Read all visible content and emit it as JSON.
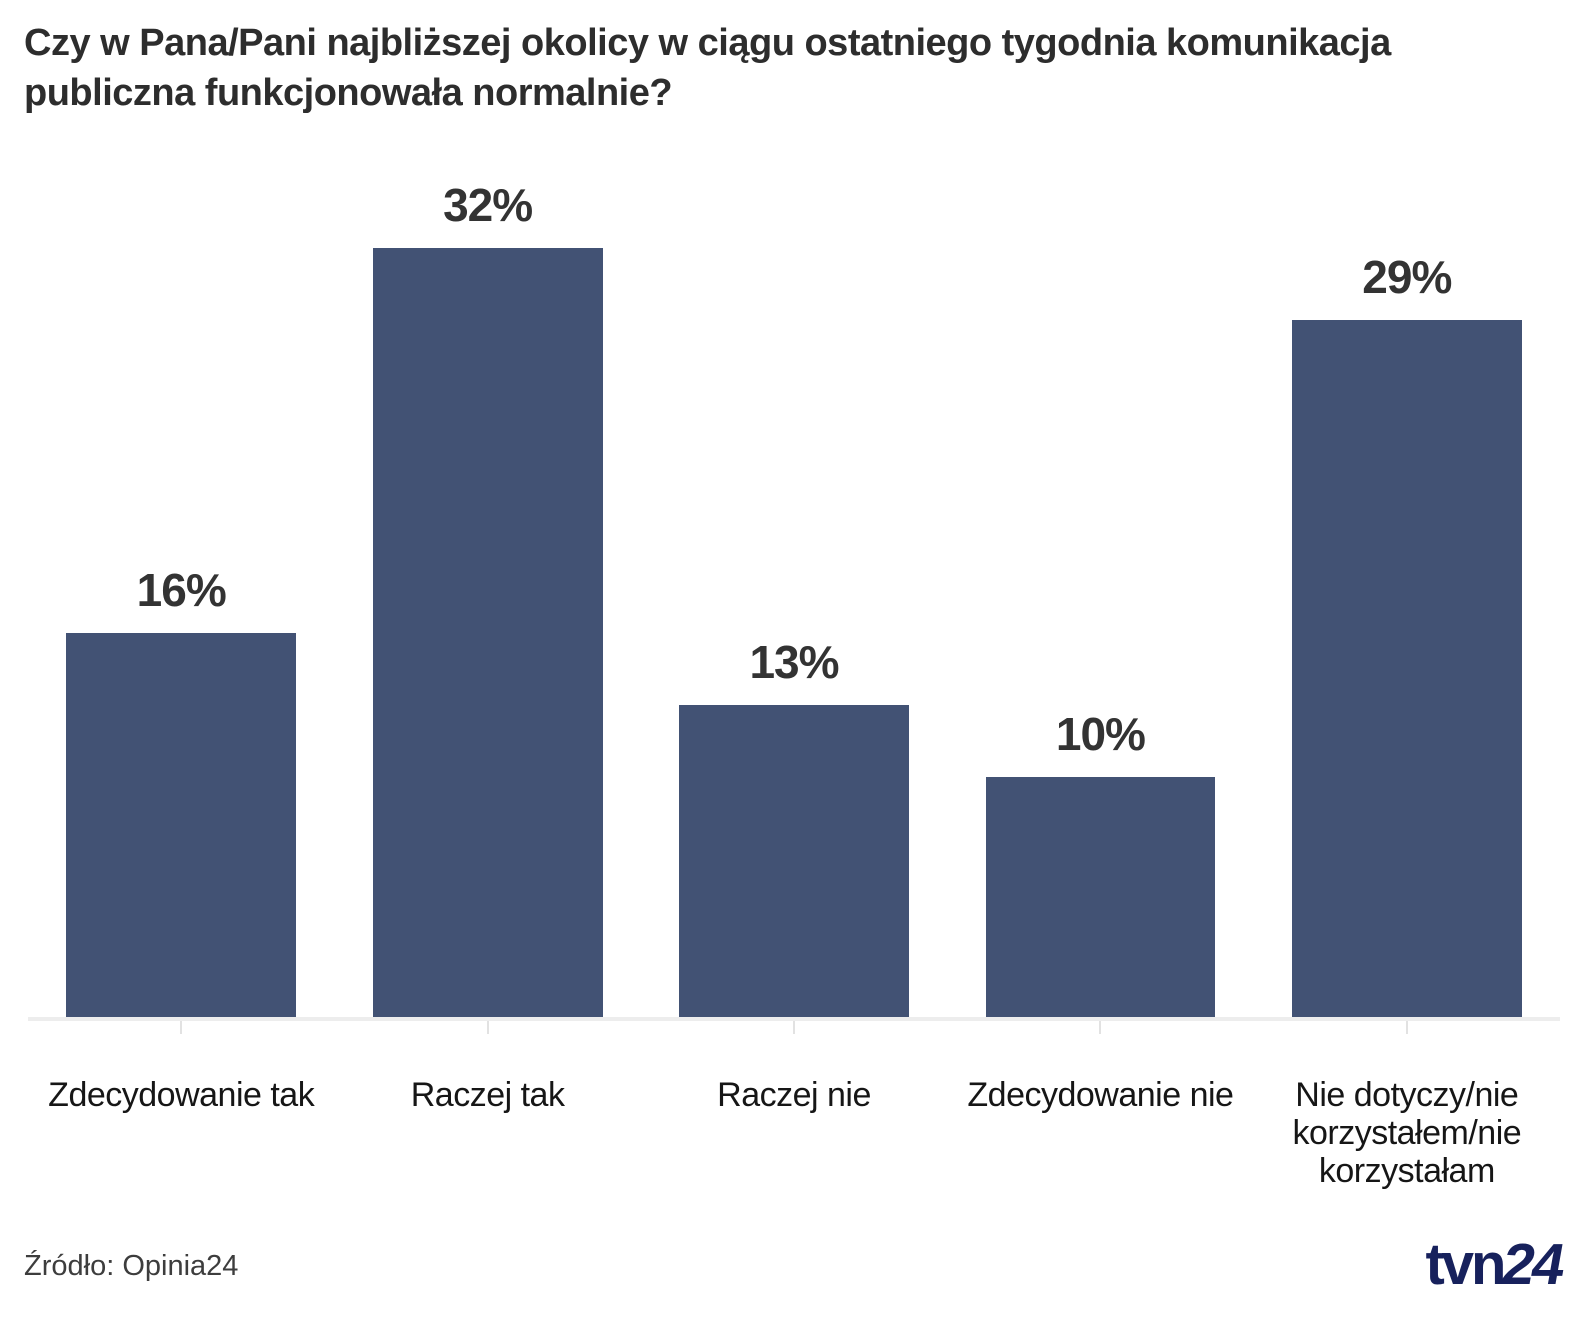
{
  "header": {
    "title_lines": [
      "Czy w Pana/Pani najbliższej okolicy w ciągu ostatniego tygodnia komunikacja",
      "publiczna funkcjonowała normalnie?"
    ]
  },
  "chart_data": {
    "type": "bar",
    "title": "Czy w Pana/Pani najbliższej okolicy w ciągu ostatniego tygodnia komunikacja publiczna funkcjonowała normalnie?",
    "categories": [
      "Zdecydowanie tak",
      "Raczej tak",
      "Raczej nie",
      "Zdecydowanie nie",
      "Nie dotyczy/nie korzystałem/nie korzystałam"
    ],
    "values": [
      16,
      32,
      13,
      10,
      29
    ],
    "value_labels": [
      "16%",
      "32%",
      "13%",
      "10%",
      "29%"
    ],
    "unit": "%",
    "xlabel": "",
    "ylabel": "",
    "ylim": [
      0,
      32
    ],
    "grid": false,
    "legend": false,
    "y_axis_visible": false,
    "bar_color": "#425274",
    "value_label_color": "#333333",
    "axis_line_color": "#ededed"
  },
  "footer": {
    "source": "Źródło: Opinia24",
    "logo_part1": "tvn",
    "logo_part2": "24",
    "logo_color": "#17215c"
  }
}
